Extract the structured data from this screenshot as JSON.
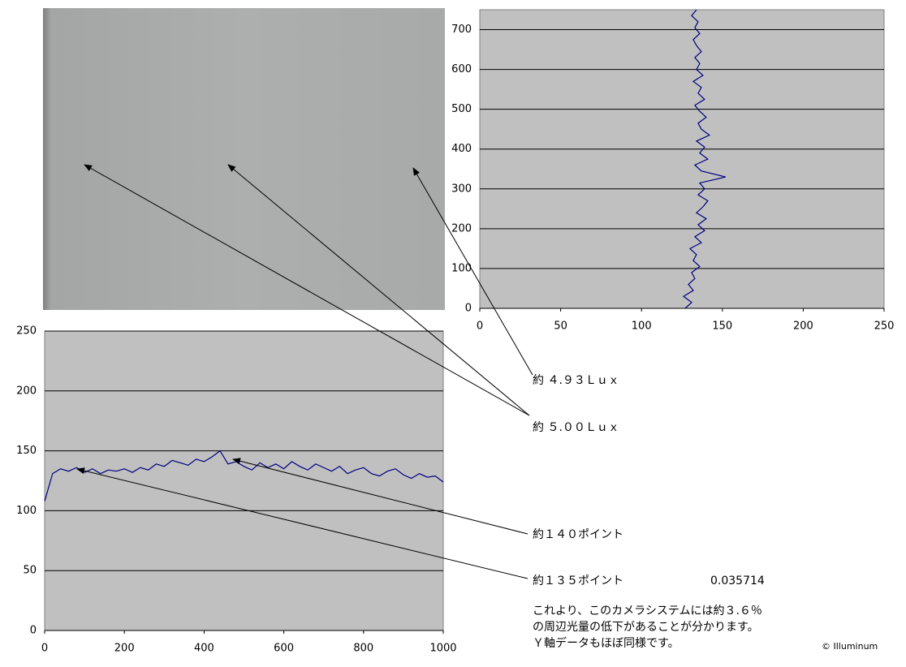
{
  "chart_data": [
    {
      "type": "line",
      "orientation": "vertical",
      "y": [
        0,
        15,
        30,
        45,
        60,
        75,
        90,
        105,
        120,
        135,
        150,
        165,
        180,
        195,
        210,
        225,
        240,
        255,
        270,
        285,
        300,
        315,
        330,
        345,
        360,
        375,
        390,
        405,
        420,
        435,
        450,
        465,
        480,
        495,
        510,
        525,
        540,
        555,
        570,
        585,
        600,
        615,
        630,
        645,
        660,
        675,
        690,
        705,
        720,
        735,
        750
      ],
      "values": [
        127,
        131,
        126,
        132,
        129,
        133,
        131,
        136,
        132,
        134,
        130,
        137,
        133,
        139,
        135,
        140,
        134,
        138,
        141,
        135,
        139,
        136,
        152,
        137,
        133,
        141,
        136,
        139,
        134,
        142,
        137,
        135,
        140,
        136,
        133,
        139,
        135,
        137,
        132,
        138,
        134,
        136,
        133,
        137,
        134,
        132,
        136,
        133,
        135,
        131,
        134
      ],
      "color": "#000080",
      "xlim": [
        0,
        250
      ],
      "xticks": [
        0,
        50,
        100,
        150,
        200,
        250
      ],
      "ylim": [
        0,
        750
      ],
      "yticks": [
        0,
        100,
        200,
        300,
        400,
        500,
        600,
        700
      ],
      "grid": true
    },
    {
      "type": "line",
      "orientation": "horizontal",
      "x": [
        0,
        20,
        40,
        60,
        80,
        100,
        120,
        140,
        160,
        180,
        200,
        220,
        240,
        260,
        280,
        300,
        320,
        340,
        360,
        380,
        400,
        420,
        440,
        460,
        480,
        500,
        520,
        540,
        560,
        580,
        600,
        620,
        640,
        660,
        680,
        700,
        720,
        740,
        760,
        780,
        800,
        820,
        840,
        860,
        880,
        900,
        920,
        940,
        960,
        980,
        1000
      ],
      "values": [
        108,
        131,
        135,
        133,
        136,
        132,
        135,
        131,
        134,
        133,
        135,
        132,
        136,
        134,
        139,
        137,
        142,
        140,
        138,
        143,
        141,
        145,
        150,
        139,
        141,
        137,
        134,
        140,
        136,
        139,
        135,
        141,
        137,
        134,
        139,
        136,
        133,
        137,
        131,
        134,
        136,
        131,
        129,
        133,
        135,
        130,
        127,
        131,
        128,
        129,
        124
      ],
      "color": "#000080",
      "xlim": [
        0,
        1000
      ],
      "xticks": [
        0,
        200,
        400,
        600,
        800,
        1000
      ],
      "ylim": [
        0,
        250
      ],
      "yticks": [
        0,
        50,
        100,
        150,
        200,
        250
      ],
      "grid": true
    }
  ],
  "annotations": {
    "lux_1": "約 ４.９３Ｌｕｘ",
    "lux_2": "約 ５.００Ｌｕｘ",
    "points_1": "約１４０ポイント",
    "points_2": "約１３５ポイント",
    "ratio": "0.035714",
    "note": [
      "これより、このカメラシステムには約３.６％",
      "の周辺光量の低下があることが分かります。",
      "Ｙ軸データもほぼ同様です。"
    ],
    "copyright": "© Illuminum"
  }
}
